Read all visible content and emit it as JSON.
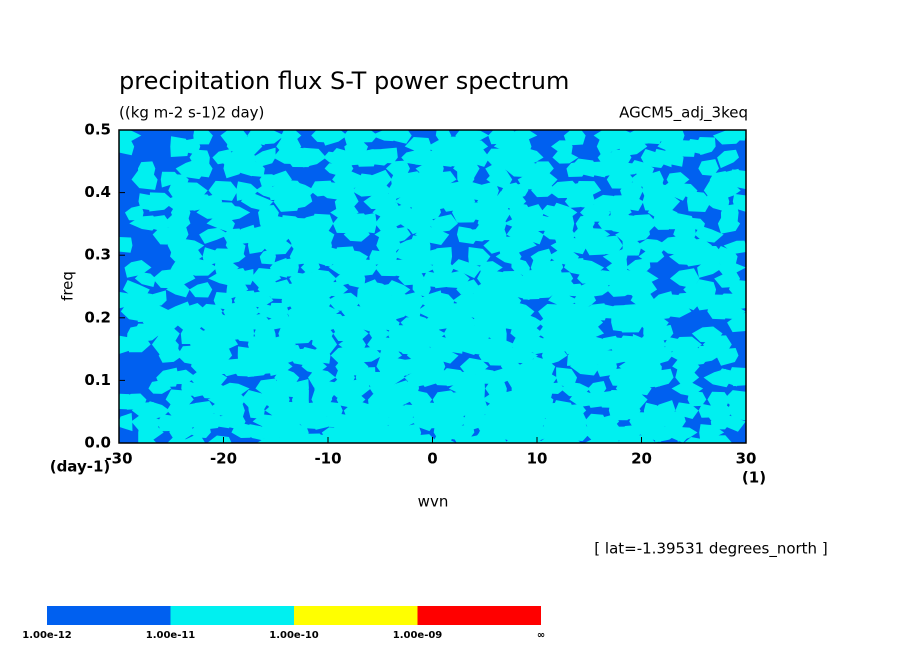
{
  "chart_data": {
    "type": "contour",
    "title": "precipitation flux S-T power spectrum",
    "subtitle": "((kg m-2 s-1)2 day)",
    "dataset": "AGCM5_adj_3keq",
    "x_label": "wvn",
    "y_label": "freq",
    "x_unit": "(1)",
    "y_unit": "(day-1)",
    "annotation": "[ lat=-1.39531 degrees_north ]",
    "xlim": [
      -30,
      30
    ],
    "xticks": [
      -30,
      -20,
      -10,
      0,
      10,
      20,
      30
    ],
    "ylim": [
      0,
      0.5
    ],
    "yticks": [
      {
        "value": 0,
        "label": "0.0"
      },
      0.1,
      0.2,
      0.3,
      0.4,
      0.5
    ],
    "colorbar": {
      "colors": [
        "#0060f0",
        "#00f0f0",
        "#ffff00",
        "#ff0000"
      ],
      "ticks": [
        {
          "value": 1e-12,
          "label": "1.00e-12"
        },
        {
          "value": 1e-11,
          "label": "1.00e-11"
        },
        {
          "value": 1e-10,
          "label": "1.00e-10"
        },
        {
          "value": 1e-09,
          "label": "1.00e-09"
        }
      ],
      "end_label": "∞"
    }
  }
}
